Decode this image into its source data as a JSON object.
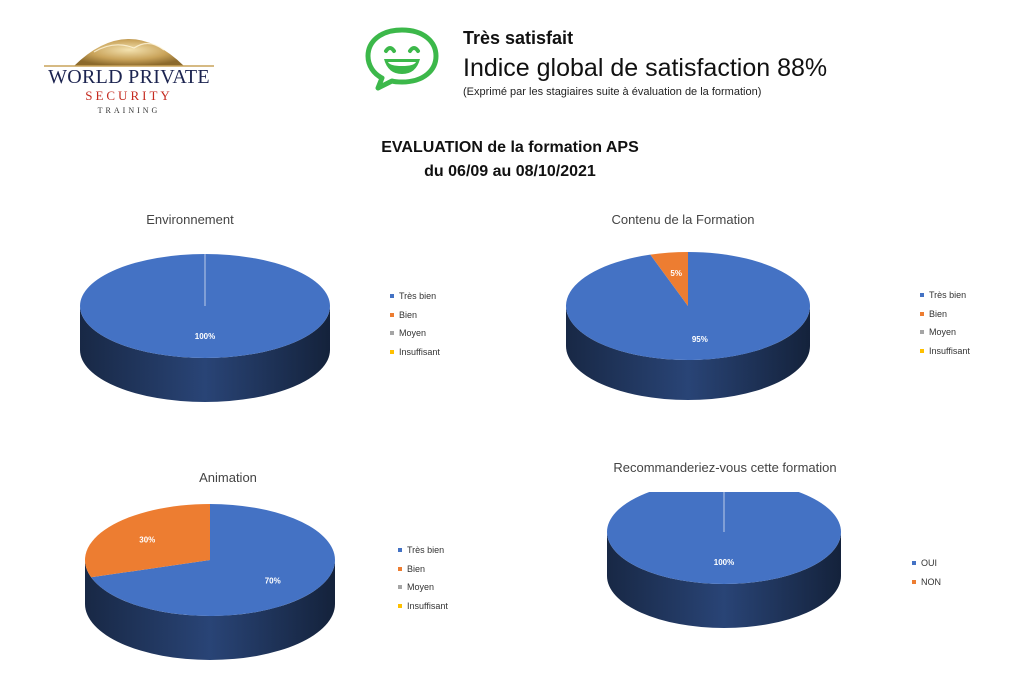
{
  "header": {
    "logo": {
      "line1": "WORLD PRIVATE",
      "line2": "SECURITY",
      "line3": "TRAINING"
    },
    "satisfaction_label": "Très satisfait",
    "satisfaction_index": "Indice global de satisfaction 88%",
    "satisfaction_note": "(Exprimé par les stagiaires suite à évaluation de la formation)",
    "smiley_icon": "smiley-speech-bubble-icon",
    "smiley_color": "#3cb84a"
  },
  "report": {
    "title_line1": "EVALUATION de la formation APS",
    "title_line2": "du 06/09 au 08/10/2021"
  },
  "colors": {
    "Très bien": "#4472c4",
    "Bien": "#ed7d31",
    "Moyen": "#a5a5a5",
    "Insuffisant": "#ffc000",
    "OUI": "#4472c4",
    "NON": "#ed7d31"
  },
  "chart_data": [
    {
      "type": "pie",
      "title": "Environnement",
      "categories": [
        "Très bien",
        "Bien",
        "Moyen",
        "Insuffisant"
      ],
      "values": [
        100,
        0,
        0,
        0
      ],
      "data_labels": [
        "100%",
        "",
        "",
        ""
      ],
      "legend": "right"
    },
    {
      "type": "pie",
      "title": "Contenu de la Formation",
      "categories": [
        "Très bien",
        "Bien",
        "Moyen",
        "Insuffisant"
      ],
      "values": [
        95,
        5,
        0,
        0
      ],
      "data_labels": [
        "95%",
        "5%",
        "",
        ""
      ],
      "legend": "right"
    },
    {
      "type": "pie",
      "title": "Animation",
      "categories": [
        "Très bien",
        "Bien",
        "Moyen",
        "Insuffisant"
      ],
      "values": [
        70,
        30,
        0,
        0
      ],
      "data_labels": [
        "70%",
        "30%",
        "",
        ""
      ],
      "legend": "right"
    },
    {
      "type": "pie",
      "title": "Recommanderiez-vous cette formation",
      "categories": [
        "OUI",
        "NON"
      ],
      "values": [
        100,
        0
      ],
      "data_labels": [
        "100%",
        ""
      ],
      "legend": "right"
    }
  ]
}
